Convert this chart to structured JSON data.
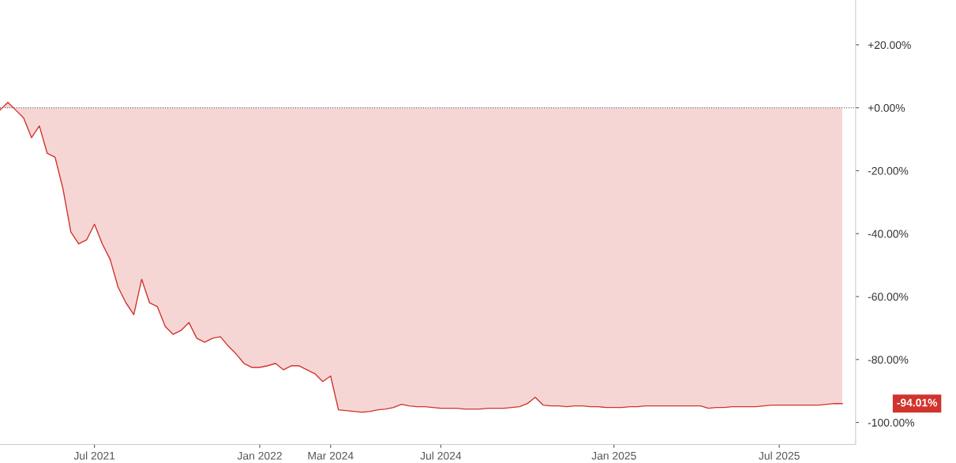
{
  "chart_data": {
    "type": "area",
    "categories": [
      null,
      null,
      null,
      null,
      null,
      null,
      null,
      null,
      null,
      null,
      null,
      null,
      "Jul 2021",
      null,
      null,
      null,
      null,
      null,
      null,
      null,
      null,
      null,
      null,
      null,
      null,
      null,
      null,
      null,
      null,
      null,
      null,
      null,
      null,
      "Jan 2022",
      null,
      null,
      null,
      null,
      null,
      null,
      null,
      null,
      "Mar 2024",
      null,
      null,
      null,
      null,
      null,
      null,
      null,
      null,
      null,
      null,
      null,
      null,
      null,
      "Jul 2024",
      null,
      null,
      null,
      null,
      null,
      null,
      null,
      null,
      null,
      null,
      null,
      null,
      null,
      null,
      null,
      null,
      null,
      null,
      null,
      null,
      null,
      "Jan 2025",
      null,
      null,
      null,
      null,
      null,
      null,
      null,
      null,
      null,
      null,
      null,
      null,
      null,
      null,
      null,
      null,
      null,
      null,
      null,
      null,
      "Jul 2025",
      null,
      null,
      null,
      null,
      null,
      null,
      null,
      null
    ],
    "series": [
      {
        "color": "#d0342c",
        "values": [
          -0.75,
          1.75,
          -0.75,
          -3.25,
          -9.5,
          -5.75,
          -14.5,
          -15.75,
          -25.75,
          -39.5,
          -43.25,
          -42,
          -37,
          -43.25,
          -48.25,
          -57,
          -62,
          -65.75,
          -54.5,
          -62,
          -63.25,
          -69.5,
          -72,
          -70.75,
          -68.25,
          -73.25,
          -74.5,
          -73.25,
          -72.75,
          -75.75,
          -78.25,
          -81.25,
          -82.5,
          -82.5,
          -82,
          -81.25,
          -83.25,
          -82,
          -82,
          -83.25,
          -84.5,
          -87,
          -85.25,
          -96,
          -96.25,
          -96.5,
          -96.75,
          -96.5,
          -96,
          -95.75,
          -95.25,
          -94.25,
          -94.75,
          -95,
          -95,
          -95.25,
          -95.5,
          -95.5,
          -95.5,
          -95.75,
          -95.75,
          -95.75,
          -95.5,
          -95.5,
          -95.5,
          -95.25,
          -95,
          -94,
          -92,
          -94.5,
          -94.75,
          -94.75,
          -95,
          -94.75,
          -94.75,
          -95,
          -95,
          -95.25,
          -95.25,
          -95.25,
          -95,
          -95,
          -94.75,
          -94.75,
          -94.75,
          -94.75,
          -94.75,
          -94.75,
          -94.75,
          -94.75,
          -95.5,
          -95.25,
          -95.25,
          -95,
          -95,
          -95,
          -95,
          -94.75,
          -94.5,
          -94.5,
          -94.5,
          -94.5,
          -94.5,
          -94.5,
          -94.5,
          -94.25,
          -94,
          -94.01
        ]
      }
    ],
    "ylim": [
      -107,
      34.25
    ],
    "yticks": [
      {
        "value": 20,
        "label": "+20.00%"
      },
      {
        "value": 0,
        "label": "+0.00%"
      },
      {
        "value": -20,
        "label": "-20.00%"
      },
      {
        "value": -40,
        "label": "-40.00%"
      },
      {
        "value": -60,
        "label": "-60.00%"
      },
      {
        "value": -80,
        "label": "-80.00%"
      },
      {
        "value": -100,
        "label": "-100.00%"
      }
    ],
    "ref_lines": [
      {
        "axis": "y",
        "value": 0,
        "color": "#666666",
        "line_style": "dotted"
      }
    ],
    "annotations": [
      "-94.01%"
    ],
    "grid": false,
    "legend": false
  }
}
